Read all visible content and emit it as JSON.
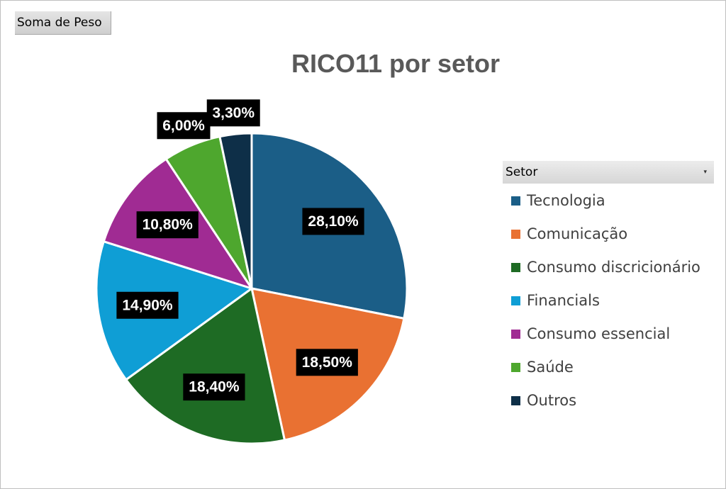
{
  "pivot": {
    "field_button_label": "Soma de Peso"
  },
  "legend": {
    "filter_label": "Setor",
    "dropdown_icon": "dropdown-arrow-icon"
  },
  "chart_data": {
    "type": "pie",
    "title": "RICO11 por setor",
    "categories": [
      "Tecnologia",
      "Comunicação",
      "Consumo discricionário",
      "Financials",
      "Consumo essencial",
      "Saúde",
      "Outros"
    ],
    "values": [
      28.1,
      18.5,
      18.4,
      14.9,
      10.8,
      6.0,
      3.3
    ],
    "data_labels": [
      "28,10%",
      "18,50%",
      "18,40%",
      "14,90%",
      "10,80%",
      "6,00%",
      "3,30%"
    ],
    "colors": [
      "#1b5e87",
      "#e97132",
      "#1e6b24",
      "#0f9ed5",
      "#a02b93",
      "#4ea72e",
      "#0e2f48"
    ],
    "legend_position": "right",
    "start_angle": "12 o'clock, clockwise"
  }
}
